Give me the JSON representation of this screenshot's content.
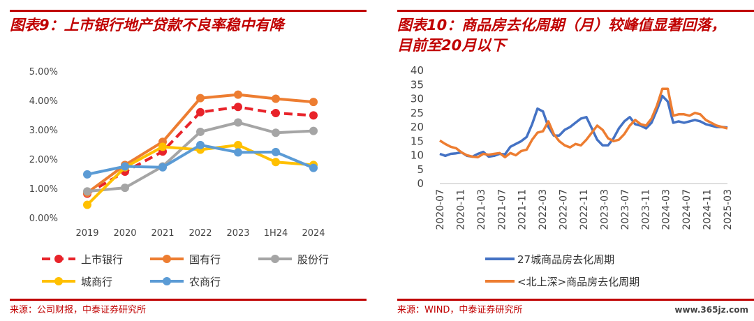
{
  "left": {
    "title": "图表9：上市银行地产贷款不良率稳中有降",
    "source": "来源：公司财报，中泰证券研究所"
  },
  "right": {
    "title": "图表10：商品房去化周期（月）较峰值显著回落，\n目前至20月以下",
    "source": "来源：WIND，中泰证券研究所"
  },
  "watermark": "www.365jz.com",
  "chart_data": [
    {
      "type": "line",
      "title": "上市银行地产贷款不良率稳中有降",
      "categories": [
        "2019",
        "2020",
        "2021",
        "2022",
        "2023",
        "1H24",
        "2024"
      ],
      "ylim": [
        0,
        5
      ],
      "yticks": [
        "0.00%",
        "1.00%",
        "2.00%",
        "3.00%",
        "4.00%",
        "5.00%"
      ],
      "legend": "bottom",
      "series": [
        {
          "name": "上市银行",
          "color": "#e8232a",
          "dashed": true,
          "values": [
            0.82,
            1.57,
            2.26,
            3.6,
            3.78,
            3.57,
            3.49
          ]
        },
        {
          "name": "国有行",
          "color": "#ed7d31",
          "values": [
            0.85,
            1.8,
            2.59,
            4.08,
            4.2,
            4.06,
            3.95
          ]
        },
        {
          "name": "股份行",
          "color": "#a5a5a5",
          "values": [
            0.9,
            1.02,
            1.75,
            2.93,
            3.25,
            2.9,
            2.96
          ]
        },
        {
          "name": "城商行",
          "color": "#ffc000",
          "values": [
            0.44,
            1.72,
            2.42,
            2.32,
            2.48,
            1.9,
            1.8
          ]
        },
        {
          "name": "农商行",
          "color": "#5b9bd5",
          "values": [
            1.48,
            1.75,
            1.72,
            2.48,
            2.23,
            2.24,
            1.7
          ]
        }
      ]
    },
    {
      "type": "line",
      "title": "商品房去化周期（月）较峰值显著回落，目前至20月以下",
      "ylim": [
        0,
        40
      ],
      "yticks": [
        "0",
        "5",
        "10",
        "15",
        "20",
        "25",
        "30",
        "35",
        "40"
      ],
      "xticks": [
        "2020-07",
        "2020-11",
        "2021-03",
        "2021-07",
        "2021-11",
        "2022-03",
        "2022-07",
        "2022-11",
        "2023-03",
        "2023-07",
        "2023-11",
        "2024-03",
        "2024-07",
        "2024-11",
        "2025-03"
      ],
      "legend": "bottom",
      "series": [
        {
          "name": "27城商品房去化周期",
          "color": "#4472c4",
          "values": [
            10.5,
            9.8,
            10.5,
            10.7,
            11.0,
            9.8,
            9.5,
            10.5,
            11.2,
            9.5,
            9.8,
            10.5,
            10.3,
            13.0,
            14.0,
            15.0,
            16.5,
            21.0,
            26.5,
            25.5,
            20.0,
            17.0,
            17.0,
            19.0,
            20.0,
            21.5,
            23.0,
            23.5,
            19.5,
            15.5,
            13.5,
            13.5,
            16.0,
            19.5,
            22.0,
            23.5,
            21.0,
            20.5,
            19.5,
            21.5,
            26.0,
            31.0,
            29.0,
            21.5,
            22.0,
            21.5,
            22.0,
            22.5,
            22.0,
            21.0,
            20.5,
            20.0,
            20.0,
            19.8
          ]
        },
        {
          "name": "<北上深>商品房去化周期",
          "color": "#ed7d31",
          "values": [
            15.2,
            14.0,
            13.0,
            12.5,
            11.0,
            10.0,
            9.5,
            9.3,
            10.5,
            10.2,
            10.5,
            10.8,
            9.3,
            10.8,
            10.0,
            11.5,
            12.0,
            15.5,
            18.0,
            18.5,
            22.0,
            17.5,
            15.0,
            13.5,
            12.8,
            14.0,
            13.5,
            15.5,
            18.0,
            20.5,
            19.0,
            16.0,
            15.0,
            15.5,
            17.5,
            20.5,
            22.5,
            21.0,
            20.5,
            23.0,
            27.5,
            33.5,
            33.5,
            24.0,
            24.5,
            24.5,
            24.0,
            25.0,
            24.5,
            22.5,
            21.5,
            20.5,
            20.0,
            19.5
          ]
        }
      ]
    }
  ]
}
